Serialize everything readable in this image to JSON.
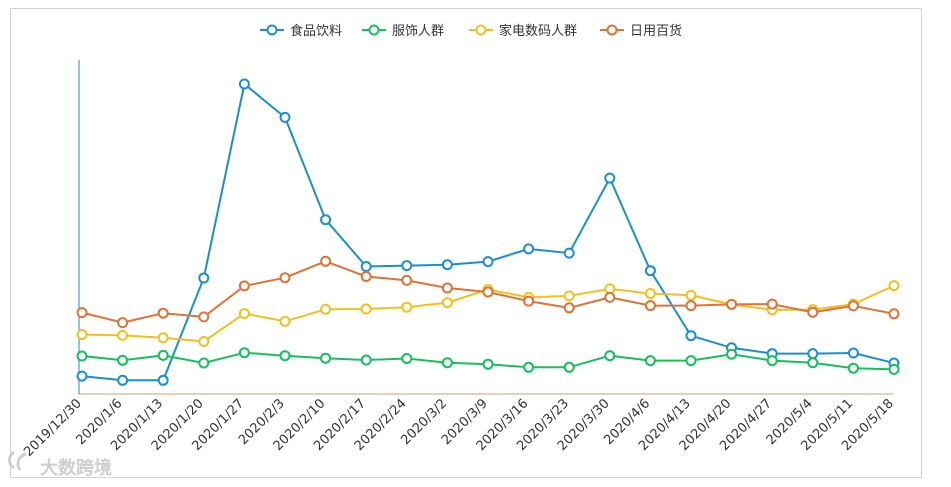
{
  "chart_data": {
    "type": "line",
    "categories": [
      "2019/12/30",
      "2020/1/6",
      "2020/1/13",
      "2020/1/20",
      "2020/1/27",
      "2020/2/3",
      "2020/2/10",
      "2020/2/17",
      "2020/2/24",
      "2020/3/2",
      "2020/3/9",
      "2020/3/16",
      "2020/3/23",
      "2020/3/30",
      "2020/4/6",
      "2020/4/13",
      "2020/4/20",
      "2020/4/27",
      "2020/5/4",
      "2020/5/11",
      "2020/5/18"
    ],
    "series": [
      {
        "name": "食品饮料",
        "color": "#1a8fcf",
        "values": [
          5.9,
          4.5,
          4.5,
          38.2,
          102.1,
          91.1,
          57.4,
          42.0,
          42.3,
          42.6,
          43.6,
          47.8,
          46.4,
          71.1,
          40.6,
          19.2,
          15.2,
          13.3,
          13.3,
          13.5,
          10.2
        ]
      },
      {
        "name": "服饰人群",
        "color": "#14c05c",
        "values": [
          12.5,
          11.1,
          12.7,
          10.2,
          13.6,
          12.6,
          11.8,
          11.2,
          11.7,
          10.3,
          9.8,
          8.8,
          8.8,
          12.6,
          11.0,
          11.0,
          13.1,
          11.0,
          10.3,
          8.5,
          8.1
        ]
      },
      {
        "name": "家电数码人群",
        "color": "#f0c020",
        "values": [
          19.6,
          19.3,
          18.5,
          17.3,
          26.5,
          23.9,
          27.9,
          28.0,
          28.6,
          30.1,
          34.4,
          31.8,
          32.3,
          34.6,
          33.1,
          32.5,
          29.5,
          27.7,
          27.8,
          29.6,
          35.7
        ]
      },
      {
        "name": "日用百货",
        "color": "#e07236",
        "values": [
          26.8,
          23.5,
          26.6,
          25.4,
          35.6,
          38.3,
          43.7,
          38.7,
          37.4,
          34.9,
          33.6,
          30.6,
          28.4,
          31.8,
          29.1,
          29.1,
          29.5,
          29.6,
          26.9,
          29.0,
          26.4
        ]
      }
    ],
    "ylim": [
      0,
      110
    ],
    "grid": false,
    "legend_position": "top",
    "title": "",
    "xlabel": "",
    "ylabel": ""
  },
  "watermark": {
    "text": "大数跨境"
  }
}
